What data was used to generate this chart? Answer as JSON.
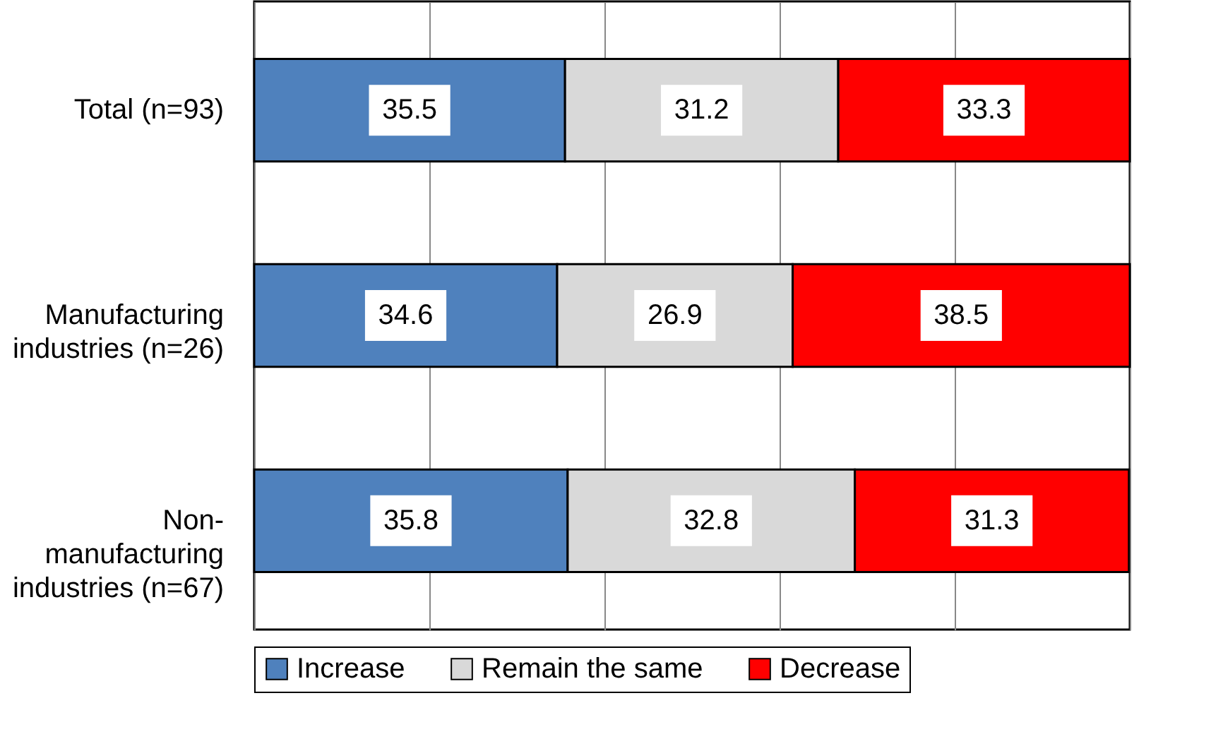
{
  "chart_data": {
    "type": "bar",
    "orientation": "horizontal",
    "stacked": true,
    "categories": [
      "Total (n=93)",
      "Manufacturing industries (n=26)",
      "Non-manufacturing industries (n=67)"
    ],
    "series": [
      {
        "name": "Increase",
        "color": "#4f81bd",
        "values": [
          35.5,
          34.6,
          35.8
        ]
      },
      {
        "name": "Remain the same",
        "color": "#d9d9d9",
        "values": [
          31.2,
          26.9,
          32.8
        ]
      },
      {
        "name": "Decrease",
        "color": "#ff0000",
        "values": [
          33.3,
          38.5,
          31.3
        ]
      }
    ],
    "xlim": [
      0,
      100
    ],
    "xticks": [
      {
        "value": 0,
        "label": null
      },
      {
        "value": 20,
        "label": null
      },
      {
        "value": 40,
        "label": null
      },
      {
        "value": 60,
        "label": null
      },
      {
        "value": 80,
        "label": null
      },
      {
        "value": 100,
        "label": null
      }
    ],
    "grid": "x",
    "legend": "bottom",
    "data_labels": true,
    "tick_labels": "y"
  }
}
